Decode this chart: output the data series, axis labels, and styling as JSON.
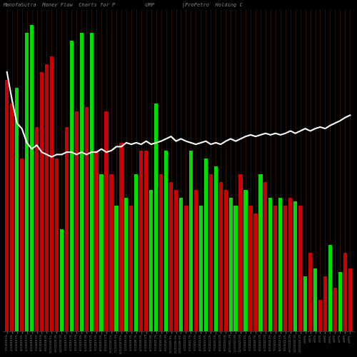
{
  "title": "ManofaSutra  Money Flow  Charts for P          UMP         |ProPetro  Holding C",
  "background_color": "#000000",
  "grid_color": "#3a1a00",
  "line_color": "#ffffff",
  "positive_color": "#00dd00",
  "negative_color": "#cc0000",
  "bar_width": 0.75,
  "colors": [
    "r",
    "r",
    "g",
    "r",
    "g",
    "g",
    "r",
    "r",
    "r",
    "r",
    "r",
    "g",
    "r",
    "g",
    "r",
    "g",
    "r",
    "g",
    "r",
    "g",
    "r",
    "r",
    "g",
    "r",
    "g",
    "r",
    "g",
    "r",
    "r",
    "g",
    "g",
    "r",
    "g",
    "r",
    "r",
    "g",
    "r",
    "g",
    "r",
    "g",
    "g",
    "r",
    "g",
    "r",
    "r",
    "g",
    "g",
    "r",
    "g",
    "r",
    "r",
    "g",
    "r",
    "g",
    "r",
    "g",
    "r",
    "r",
    "g",
    "r",
    "g",
    "r",
    "g",
    "r",
    "r",
    "g",
    "r",
    "g",
    "r",
    "r"
  ],
  "heights": [
    320,
    290,
    310,
    220,
    380,
    390,
    260,
    330,
    340,
    350,
    220,
    130,
    260,
    370,
    280,
    380,
    285,
    380,
    230,
    200,
    280,
    200,
    160,
    240,
    170,
    160,
    200,
    230,
    230,
    180,
    290,
    200,
    230,
    190,
    180,
    170,
    160,
    230,
    180,
    160,
    220,
    200,
    210,
    190,
    180,
    170,
    160,
    200,
    180,
    160,
    150,
    200,
    190,
    170,
    160,
    170,
    160,
    170,
    165,
    160,
    70,
    100,
    80,
    40,
    70,
    110,
    55,
    75,
    100,
    80
  ],
  "line_values": [
    330,
    295,
    265,
    258,
    240,
    232,
    237,
    228,
    225,
    222,
    225,
    225,
    228,
    228,
    225,
    228,
    225,
    228,
    228,
    232,
    228,
    230,
    235,
    235,
    240,
    238,
    240,
    238,
    242,
    238,
    240,
    242,
    245,
    248,
    242,
    245,
    242,
    240,
    238,
    240,
    242,
    238,
    240,
    238,
    242,
    245,
    242,
    245,
    248,
    250,
    248,
    250,
    252,
    250,
    252,
    250,
    252,
    255,
    252,
    255,
    258,
    255,
    258,
    260,
    258,
    262,
    265,
    268,
    272,
    275
  ]
}
